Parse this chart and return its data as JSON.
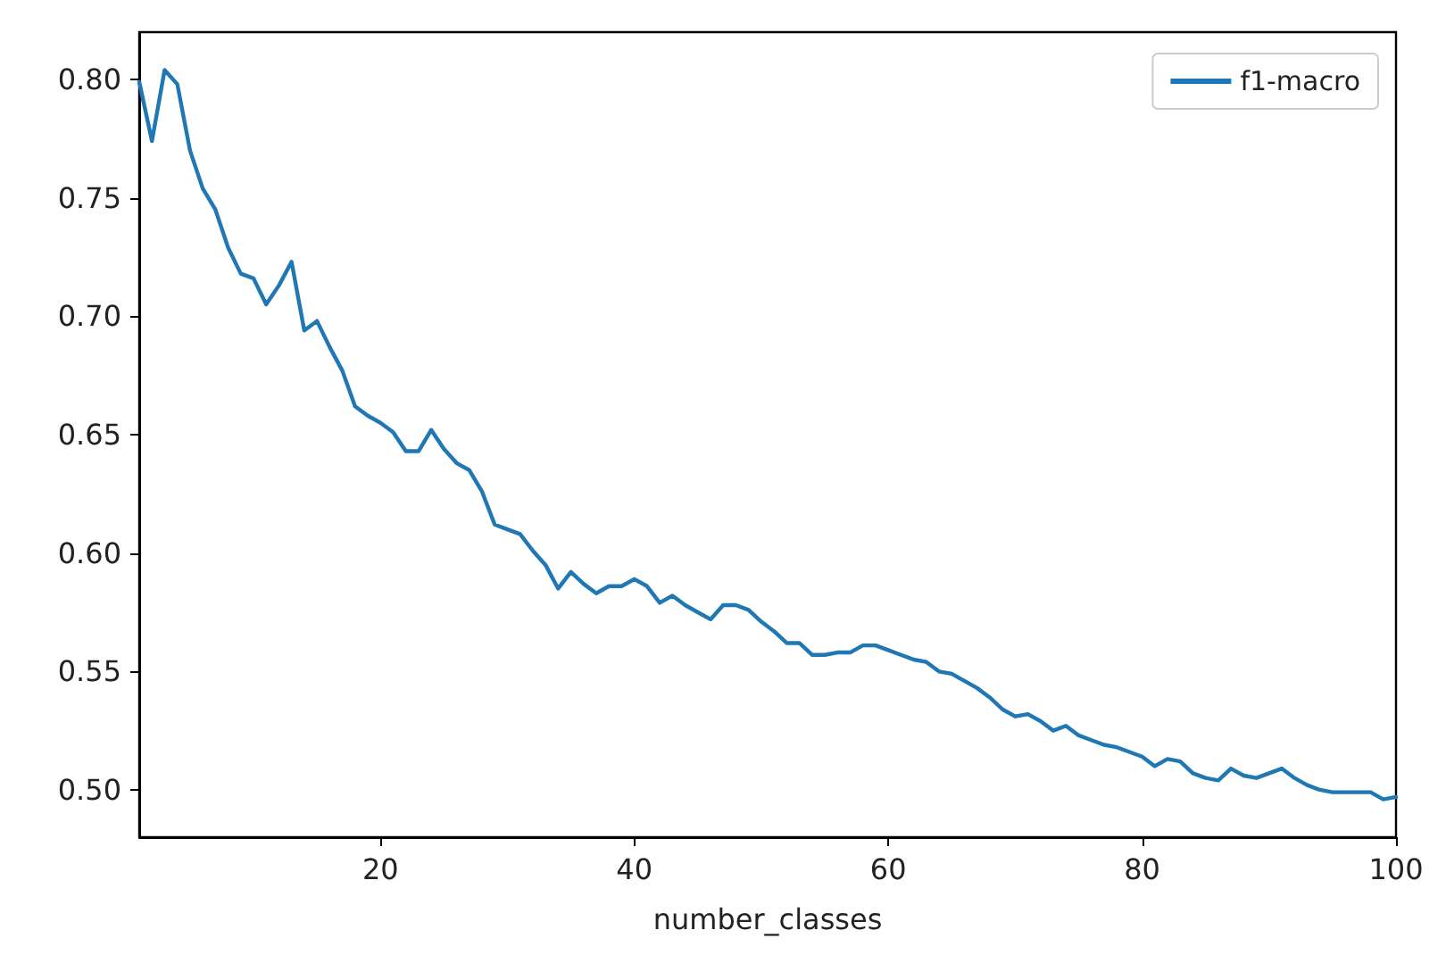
{
  "chart_data": {
    "type": "line",
    "xlabel": "number_classes",
    "x": [
      1,
      2,
      3,
      4,
      5,
      6,
      7,
      8,
      9,
      10,
      11,
      12,
      13,
      14,
      15,
      16,
      17,
      18,
      19,
      20,
      21,
      22,
      23,
      24,
      25,
      26,
      27,
      28,
      29,
      30,
      31,
      32,
      33,
      34,
      35,
      36,
      37,
      38,
      39,
      40,
      41,
      42,
      43,
      44,
      45,
      46,
      47,
      48,
      49,
      50,
      51,
      52,
      53,
      54,
      55,
      56,
      57,
      58,
      59,
      60,
      61,
      62,
      63,
      64,
      65,
      66,
      67,
      68,
      69,
      70,
      71,
      72,
      73,
      74,
      75,
      76,
      77,
      78,
      79,
      80,
      81,
      82,
      83,
      84,
      85,
      86,
      87,
      88,
      89,
      90,
      91,
      92,
      93,
      94,
      95,
      96,
      97,
      98,
      99,
      100
    ],
    "series": [
      {
        "name": "f1-macro",
        "color": "#1f77b4",
        "values": [
          0.799,
          0.774,
          0.804,
          0.798,
          0.77,
          0.754,
          0.745,
          0.729,
          0.718,
          0.716,
          0.705,
          0.713,
          0.723,
          0.694,
          0.698,
          0.687,
          0.677,
          0.662,
          0.658,
          0.655,
          0.651,
          0.643,
          0.643,
          0.652,
          0.644,
          0.638,
          0.635,
          0.626,
          0.612,
          0.61,
          0.608,
          0.601,
          0.595,
          0.585,
          0.592,
          0.587,
          0.583,
          0.586,
          0.586,
          0.589,
          0.586,
          0.579,
          0.582,
          0.578,
          0.575,
          0.572,
          0.578,
          0.578,
          0.576,
          0.571,
          0.567,
          0.562,
          0.562,
          0.557,
          0.557,
          0.558,
          0.558,
          0.561,
          0.561,
          0.559,
          0.557,
          0.555,
          0.554,
          0.55,
          0.549,
          0.546,
          0.543,
          0.539,
          0.534,
          0.531,
          0.532,
          0.529,
          0.525,
          0.527,
          0.523,
          0.521,
          0.519,
          0.518,
          0.516,
          0.514,
          0.51,
          0.513,
          0.512,
          0.507,
          0.505,
          0.504,
          0.509,
          0.506,
          0.505,
          0.507,
          0.509,
          0.505,
          0.502,
          0.5,
          0.499,
          0.499,
          0.499,
          0.499,
          0.496,
          0.497
        ]
      }
    ],
    "xlim": [
      1,
      100
    ],
    "xticks": [
      20,
      40,
      60,
      80,
      100
    ],
    "ylim": [
      0.48,
      0.82
    ],
    "yticks": [
      {
        "value": 0.5,
        "label": "0.50"
      },
      0.55,
      {
        "value": 0.6,
        "label": "0.60"
      },
      0.65,
      {
        "value": 0.7,
        "label": "0.70"
      },
      0.75,
      {
        "value": 0.8,
        "label": "0.80"
      }
    ],
    "legend": "top right",
    "grid": false,
    "marker": "none",
    "line_style": "solid"
  }
}
